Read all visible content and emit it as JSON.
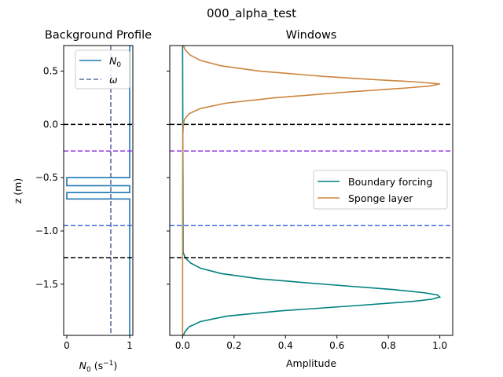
{
  "suptitle": "000_alpha_test",
  "chart_data": [
    {
      "type": "line",
      "title": "Background Profile",
      "xlabel_base": "N",
      "xlabel_sub": "0",
      "xlabel_unit": " (s",
      "xlabel_exp": "−1",
      "xlabel_close": ")",
      "ylabel": "z (m)",
      "xlim": [
        -0.05,
        1.05
      ],
      "ylim": [
        -1.98,
        0.74
      ],
      "xticks": [
        {
          "v": 0,
          "label": "0"
        },
        {
          "v": 1,
          "label": "1"
        }
      ],
      "yticks": [
        {
          "v": 0.5,
          "label": "0.5"
        },
        {
          "v": 0.0,
          "label": "0.0"
        },
        {
          "v": -0.5,
          "label": "−0.5"
        },
        {
          "v": -1.0,
          "label": "−1.0"
        },
        {
          "v": -1.5,
          "label": "−1.5"
        }
      ],
      "legend": {
        "placement": "top-left",
        "entries": [
          {
            "base": "N",
            "sub": "0",
            "color": "#1f77b4",
            "dash": false
          },
          {
            "base": "ω",
            "sub": "",
            "color": "#5f6f9f",
            "dash": true
          }
        ]
      },
      "series": [
        {
          "color": "#1f77b4",
          "dash": false,
          "x": [
            1,
            1,
            0,
            0,
            1,
            1,
            0,
            0,
            1,
            1
          ],
          "y": [
            0.74,
            -0.5,
            -0.5,
            -0.575,
            -0.575,
            -0.64,
            -0.64,
            -0.7,
            -0.7,
            -1.98
          ]
        },
        {
          "color": "#5f6f9f",
          "dash": true,
          "x": [
            0.7,
            0.7
          ],
          "y": [
            0.74,
            -1.98
          ]
        }
      ],
      "hlines": [
        {
          "y": 0.0,
          "color": "#000000"
        },
        {
          "y": -0.25,
          "color": "#8a2be2"
        },
        {
          "y": -0.95,
          "color": "#4169e1"
        },
        {
          "y": -1.25,
          "color": "#000000"
        }
      ]
    },
    {
      "type": "line",
      "title": "Windows",
      "xlabel": "Amplitude",
      "xlim": [
        -0.05,
        1.05
      ],
      "ylim": [
        -1.98,
        0.74
      ],
      "xticks": [
        {
          "v": 0.0,
          "label": "0.0"
        },
        {
          "v": 0.2,
          "label": "0.2"
        },
        {
          "v": 0.4,
          "label": "0.4"
        },
        {
          "v": 0.6,
          "label": "0.6"
        },
        {
          "v": 0.8,
          "label": "0.8"
        },
        {
          "v": 1.0,
          "label": "1.0"
        }
      ],
      "yticks": [
        {
          "v": 0.5
        },
        {
          "v": 0.0
        },
        {
          "v": -0.5
        },
        {
          "v": -1.0
        },
        {
          "v": -1.5
        }
      ],
      "legend": {
        "placement": "center-right",
        "entries": [
          {
            "label": "Boundary forcing",
            "color": "#008080"
          },
          {
            "label": "Sponge layer",
            "color": "#cd853f"
          }
        ]
      },
      "series": [
        {
          "name": "Boundary forcing",
          "color": "#008080",
          "y": [
            0.74,
            -1.2,
            -1.25,
            -1.3,
            -1.35,
            -1.4,
            -1.45,
            -1.5,
            -1.55,
            -1.58,
            -1.6,
            -1.62,
            -1.64,
            -1.66,
            -1.7,
            -1.75,
            -1.8,
            -1.85,
            -1.9,
            -1.95,
            -1.98
          ],
          "x": [
            0,
            0.002,
            0.01,
            0.03,
            0.07,
            0.15,
            0.3,
            0.55,
            0.82,
            0.94,
            0.99,
            1.0,
            0.97,
            0.9,
            0.68,
            0.38,
            0.17,
            0.07,
            0.025,
            0.008,
            0.003
          ]
        },
        {
          "name": "Sponge layer",
          "color": "#cd853f",
          "y": [
            0.74,
            0.7,
            0.65,
            0.6,
            0.55,
            0.5,
            0.45,
            0.42,
            0.4,
            0.38,
            0.36,
            0.34,
            0.3,
            0.25,
            0.2,
            0.15,
            0.1,
            0.05,
            0.0,
            -0.1,
            -0.5,
            -1.0,
            -1.98
          ],
          "x": [
            0.003,
            0.01,
            0.03,
            0.07,
            0.15,
            0.3,
            0.55,
            0.75,
            0.9,
            1.0,
            0.96,
            0.86,
            0.62,
            0.36,
            0.17,
            0.07,
            0.025,
            0.008,
            0.003,
            0.001,
            0,
            0,
            0
          ]
        }
      ],
      "hlines": [
        {
          "y": 0.0,
          "color": "#000000"
        },
        {
          "y": -0.25,
          "color": "#8a2be2"
        },
        {
          "y": -0.95,
          "color": "#4169e1"
        },
        {
          "y": -1.25,
          "color": "#000000"
        }
      ]
    }
  ]
}
